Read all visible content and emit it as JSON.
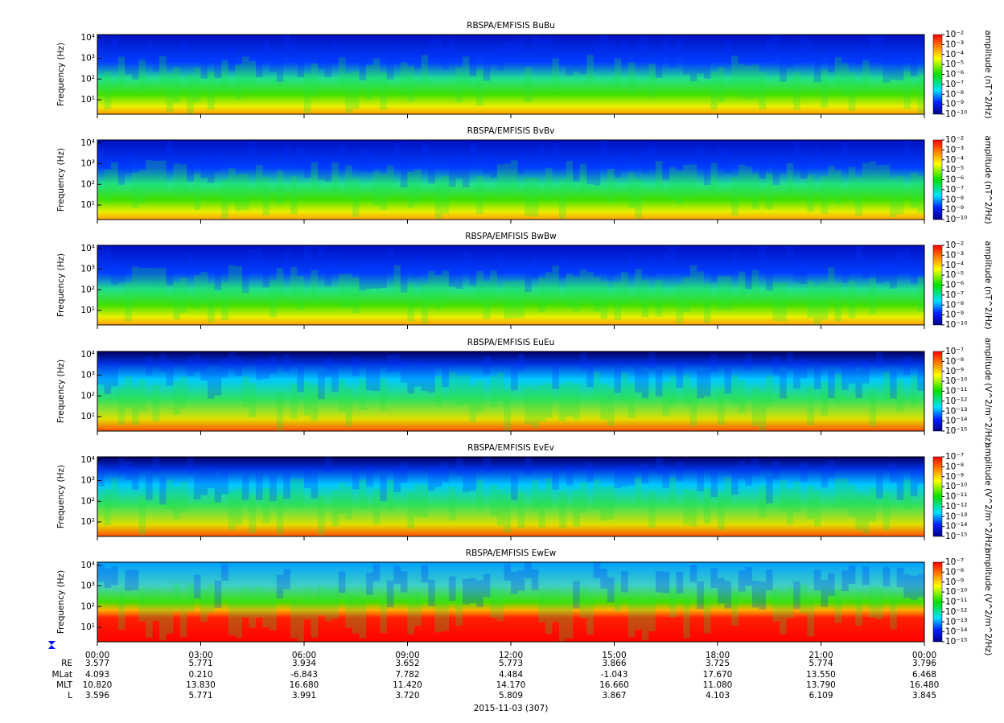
{
  "chart_data": [
    {
      "type": "spectrogram",
      "title": "RBSPA/EMFISIS  BuBu",
      "y_label": "Frequency (Hz)",
      "log_y": true,
      "ylim": [
        2,
        14000
      ],
      "yticks": [
        {
          "value": 10,
          "label": "10¹"
        },
        {
          "value": 100,
          "label": "10²"
        },
        {
          "value": 1000,
          "label": "10³"
        },
        {
          "value": 10000,
          "label": "10⁴"
        }
      ],
      "colorbar_label": "amplitude (nT^2/Hz)",
      "clim": [
        1e-10,
        0.01
      ],
      "cticks": [
        {
          "value": 0.01,
          "label": "10⁻²"
        },
        {
          "value": 0.001,
          "label": "10⁻³"
        },
        {
          "value": 0.0001,
          "label": "10⁻⁴"
        },
        {
          "value": 1e-05,
          "label": "10⁻⁵"
        },
        {
          "value": 1e-06,
          "label": "10⁻⁶"
        },
        {
          "value": 1e-07,
          "label": "10⁻⁷"
        },
        {
          "value": 1e-08,
          "label": "10⁻⁸"
        },
        {
          "value": 1e-09,
          "label": "10⁻⁹"
        },
        {
          "value": 1e-10,
          "label": "10⁻¹⁰"
        }
      ]
    },
    {
      "type": "spectrogram",
      "title": "RBSPA/EMFISIS  BvBv",
      "y_label": "Frequency (Hz)",
      "log_y": true,
      "ylim": [
        2,
        14000
      ],
      "yticks": [
        {
          "value": 10,
          "label": "10¹"
        },
        {
          "value": 100,
          "label": "10²"
        },
        {
          "value": 1000,
          "label": "10³"
        },
        {
          "value": 10000,
          "label": "10⁴"
        }
      ],
      "colorbar_label": "amplitude (nT^2/Hz)",
      "clim": [
        1e-10,
        0.01
      ],
      "cticks": [
        {
          "value": 0.01,
          "label": "10⁻²"
        },
        {
          "value": 0.001,
          "label": "10⁻³"
        },
        {
          "value": 0.0001,
          "label": "10⁻⁴"
        },
        {
          "value": 1e-05,
          "label": "10⁻⁵"
        },
        {
          "value": 1e-06,
          "label": "10⁻⁶"
        },
        {
          "value": 1e-07,
          "label": "10⁻⁷"
        },
        {
          "value": 1e-08,
          "label": "10⁻⁸"
        },
        {
          "value": 1e-09,
          "label": "10⁻⁹"
        },
        {
          "value": 1e-10,
          "label": "10⁻¹⁰"
        }
      ]
    },
    {
      "type": "spectrogram",
      "title": "RBSPA/EMFISIS  BwBw",
      "y_label": "Frequency (Hz)",
      "log_y": true,
      "ylim": [
        2,
        14000
      ],
      "yticks": [
        {
          "value": 10,
          "label": "10¹"
        },
        {
          "value": 100,
          "label": "10²"
        },
        {
          "value": 1000,
          "label": "10³"
        },
        {
          "value": 10000,
          "label": "10⁴"
        }
      ],
      "colorbar_label": "amplitude (nT^2/Hz)",
      "clim": [
        1e-10,
        0.01
      ],
      "cticks": [
        {
          "value": 0.01,
          "label": "10⁻²"
        },
        {
          "value": 0.001,
          "label": "10⁻³"
        },
        {
          "value": 0.0001,
          "label": "10⁻⁴"
        },
        {
          "value": 1e-05,
          "label": "10⁻⁵"
        },
        {
          "value": 1e-06,
          "label": "10⁻⁶"
        },
        {
          "value": 1e-07,
          "label": "10⁻⁷"
        },
        {
          "value": 1e-08,
          "label": "10⁻⁸"
        },
        {
          "value": 1e-09,
          "label": "10⁻⁹"
        },
        {
          "value": 1e-10,
          "label": "10⁻¹⁰"
        }
      ]
    },
    {
      "type": "spectrogram",
      "title": "RBSPA/EMFISIS  EuEu",
      "y_label": "Frequency (Hz)",
      "log_y": true,
      "ylim": [
        2,
        14000
      ],
      "yticks": [
        {
          "value": 10,
          "label": "10¹"
        },
        {
          "value": 100,
          "label": "10²"
        },
        {
          "value": 1000,
          "label": "10³"
        },
        {
          "value": 10000,
          "label": "10⁴"
        }
      ],
      "colorbar_label": "amplitude (V^2/m^2/Hz)",
      "clim": [
        1e-15,
        1e-07
      ],
      "cticks": [
        {
          "value": 1e-07,
          "label": "10⁻⁷"
        },
        {
          "value": 1e-08,
          "label": "10⁻⁸"
        },
        {
          "value": 1e-09,
          "label": "10⁻⁹"
        },
        {
          "value": 1e-10,
          "label": "10⁻¹⁰"
        },
        {
          "value": 1e-11,
          "label": "10⁻¹¹"
        },
        {
          "value": 1e-12,
          "label": "10⁻¹²"
        },
        {
          "value": 1e-13,
          "label": "10⁻¹³"
        },
        {
          "value": 1e-14,
          "label": "10⁻¹⁴"
        },
        {
          "value": 1e-15,
          "label": "10⁻¹⁵"
        }
      ]
    },
    {
      "type": "spectrogram",
      "title": "RBSPA/EMFISIS  EvEv",
      "y_label": "Frequency (Hz)",
      "log_y": true,
      "ylim": [
        2,
        14000
      ],
      "yticks": [
        {
          "value": 10,
          "label": "10¹"
        },
        {
          "value": 100,
          "label": "10²"
        },
        {
          "value": 1000,
          "label": "10³"
        },
        {
          "value": 10000,
          "label": "10⁴"
        }
      ],
      "colorbar_label": "amplitude (V^2/m^2/Hz)",
      "clim": [
        1e-15,
        1e-07
      ],
      "cticks": [
        {
          "value": 1e-07,
          "label": "10⁻⁷"
        },
        {
          "value": 1e-08,
          "label": "10⁻⁸"
        },
        {
          "value": 1e-09,
          "label": "10⁻⁹"
        },
        {
          "value": 1e-10,
          "label": "10⁻¹⁰"
        },
        {
          "value": 1e-11,
          "label": "10⁻¹¹"
        },
        {
          "value": 1e-12,
          "label": "10⁻¹²"
        },
        {
          "value": 1e-13,
          "label": "10⁻¹³"
        },
        {
          "value": 1e-14,
          "label": "10⁻¹⁴"
        },
        {
          "value": 1e-15,
          "label": "10⁻¹⁵"
        }
      ]
    },
    {
      "type": "spectrogram",
      "title": "RBSPA/EMFISIS  EwEw",
      "y_label": "Frequency (Hz)",
      "log_y": true,
      "ylim": [
        2,
        14000
      ],
      "yticks": [
        {
          "value": 10,
          "label": "10¹"
        },
        {
          "value": 100,
          "label": "10²"
        },
        {
          "value": 1000,
          "label": "10³"
        },
        {
          "value": 10000,
          "label": "10⁴"
        }
      ],
      "colorbar_label": "amplitude (V^2/m^2/Hz)",
      "clim": [
        1e-15,
        1e-07
      ],
      "cticks": [
        {
          "value": 1e-07,
          "label": "10⁻⁷"
        },
        {
          "value": 1e-08,
          "label": "10⁻⁸"
        },
        {
          "value": 1e-09,
          "label": "10⁻⁹"
        },
        {
          "value": 1e-10,
          "label": "10⁻¹⁰"
        },
        {
          "value": 1e-11,
          "label": "10⁻¹¹"
        },
        {
          "value": 1e-12,
          "label": "10⁻¹²"
        },
        {
          "value": 1e-13,
          "label": "10⁻¹³"
        },
        {
          "value": 1e-14,
          "label": "10⁻¹⁴"
        },
        {
          "value": 1e-15,
          "label": "10⁻¹⁵"
        }
      ],
      "xlim": [
        0,
        24
      ],
      "xticks": [
        {
          "value": 0,
          "label": "00:00"
        },
        {
          "value": 3,
          "label": "03:00"
        },
        {
          "value": 6,
          "label": "06:00"
        },
        {
          "value": 9,
          "label": "09:00"
        },
        {
          "value": 12,
          "label": "12:00"
        },
        {
          "value": 15,
          "label": "15:00"
        },
        {
          "value": 18,
          "label": "18:00"
        },
        {
          "value": 21,
          "label": "21:00"
        },
        {
          "value": 24,
          "label": "00:00"
        }
      ]
    }
  ],
  "ephemeris": [
    {
      "label": "RE",
      "values": [
        "3.577",
        "5.771",
        "3.934",
        "3.652",
        "5.773",
        "3.866",
        "3.725",
        "5.774",
        "3.796"
      ]
    },
    {
      "label": "MLat",
      "values": [
        "4.093",
        "0.210",
        "-6.843",
        "7.782",
        "4.484",
        "-1.043",
        "17.670",
        "13.550",
        "6.468"
      ]
    },
    {
      "label": "MLT",
      "values": [
        "10.820",
        "13.830",
        "16.680",
        "11.420",
        "14.170",
        "16.660",
        "11.080",
        "13.790",
        "16.480"
      ]
    },
    {
      "label": "L",
      "values": [
        "3.596",
        "5.771",
        "3.991",
        "3.720",
        "5.809",
        "3.867",
        "4.103",
        "6.109",
        "3.845"
      ]
    }
  ],
  "date_label": "2015-11-03 (307)"
}
